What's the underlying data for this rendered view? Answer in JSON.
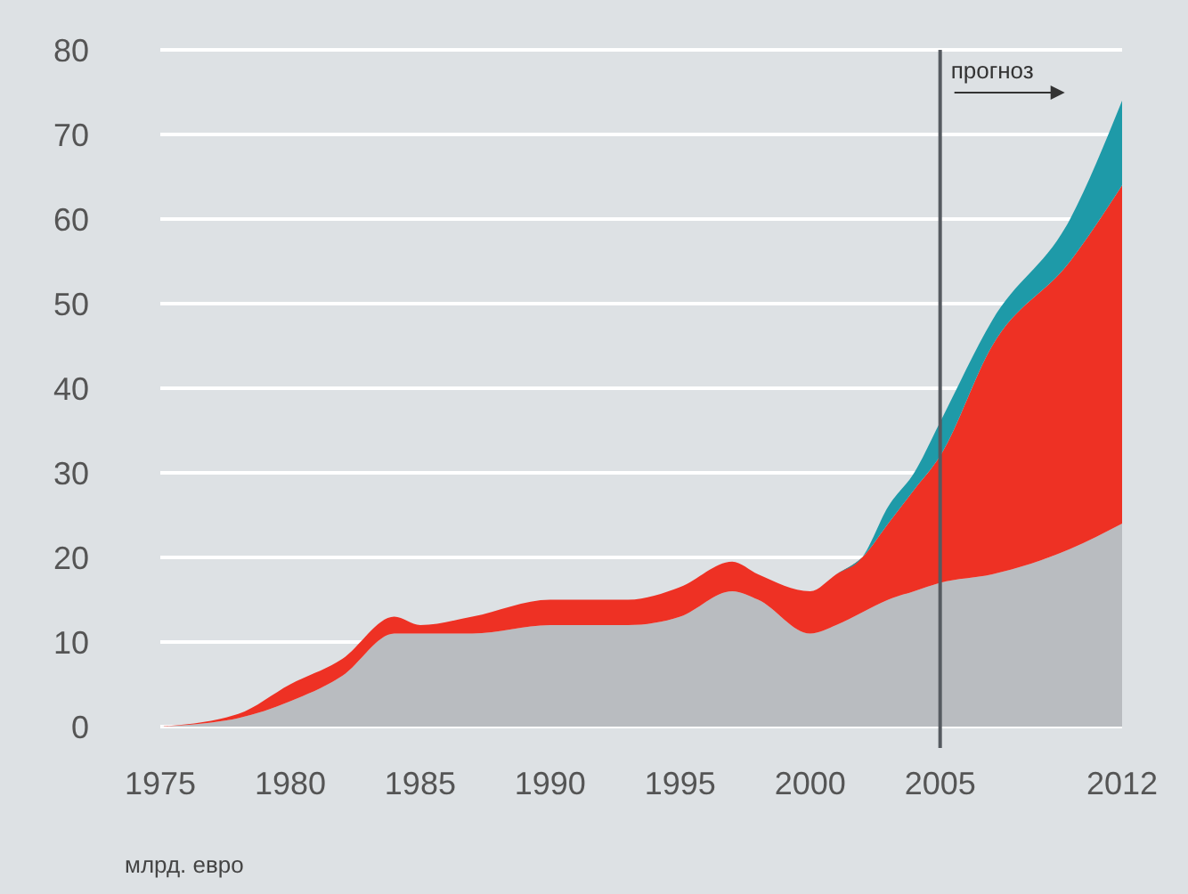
{
  "chart_data": {
    "type": "area",
    "stacked": true,
    "x": [
      1975,
      1978,
      1980,
      1982,
      1984,
      1985,
      1987,
      1990,
      1993,
      1995,
      1997,
      1998,
      2000,
      2001,
      2002,
      2003,
      2004,
      2005,
      2007,
      2010,
      2012
    ],
    "series": [
      {
        "color": "#b9bcc0",
        "values": [
          0,
          1,
          3,
          6,
          11,
          11,
          11,
          12,
          12,
          13,
          16,
          15,
          11,
          12,
          13.5,
          15,
          16,
          17,
          18,
          21,
          24
        ]
      },
      {
        "color": "#ee3124",
        "values": [
          0,
          0.5,
          2,
          2,
          2,
          1,
          2,
          3,
          3,
          3.5,
          3.5,
          3,
          5,
          6,
          6.5,
          9,
          12,
          15,
          27,
          34,
          40
        ]
      },
      {
        "color": "#1e9aa8",
        "values": [
          0,
          0,
          0,
          0,
          0,
          0,
          0,
          0,
          0,
          0,
          0,
          0,
          0,
          0,
          0,
          2,
          2,
          4,
          3,
          5,
          10
        ]
      }
    ],
    "xlim": [
      1975,
      2012
    ],
    "xticks": [
      1975,
      1980,
      1985,
      1990,
      1995,
      2000,
      2005,
      2012
    ],
    "ylim": [
      0,
      80
    ],
    "yticks": [
      0,
      10,
      20,
      30,
      40,
      50,
      60,
      70,
      80
    ],
    "grid": "y",
    "ref_lines": [
      {
        "axis": "x",
        "value": 2005,
        "label": "прогноз",
        "color": "#555a60"
      }
    ],
    "annotations": [
      "млрд. евро"
    ]
  }
}
